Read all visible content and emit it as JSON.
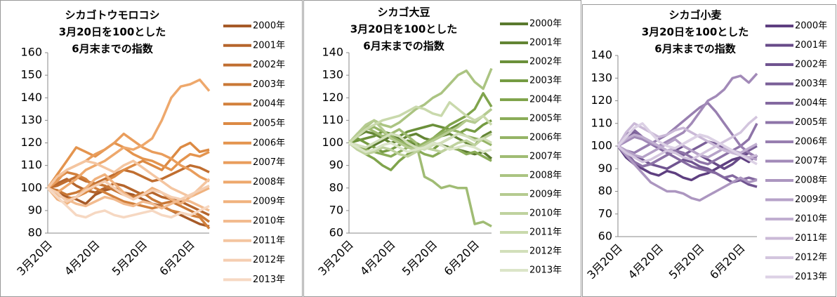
{
  "chart_data": [
    {
      "type": "line",
      "title": [
        "シカゴトウモロコシ",
        "3月20日を100とした",
        "6月末までの指数"
      ],
      "categories": [
        "3月20日",
        null,
        null,
        null,
        null,
        "4月20日",
        null,
        null,
        null,
        null,
        "5月20日",
        null,
        null,
        null,
        null,
        "6月20日",
        null,
        null
      ],
      "ylim": [
        80,
        160
      ],
      "yticks": [
        80,
        90,
        100,
        110,
        120,
        130,
        140,
        150,
        160
      ],
      "series": [
        {
          "name": "2000年",
          "color": "#a65a28",
          "values": [
            100,
            98,
            96,
            95,
            93,
            97,
            99,
            100,
            98,
            97,
            95,
            93,
            92,
            90,
            88,
            86,
            84,
            83
          ]
        },
        {
          "name": "2001年",
          "color": "#b5652c",
          "values": [
            100,
            102,
            104,
            101,
            99,
            98,
            100,
            102,
            101,
            99,
            97,
            98,
            96,
            95,
            94,
            92,
            90,
            88
          ]
        },
        {
          "name": "2002年",
          "color": "#c06e30",
          "values": [
            100,
            101,
            103,
            105,
            103,
            102,
            104,
            106,
            108,
            107,
            105,
            103,
            104,
            106,
            108,
            110,
            109,
            107
          ]
        },
        {
          "name": "2003年",
          "color": "#c97836",
          "values": [
            100,
            99,
            97,
            98,
            100,
            102,
            101,
            99,
            97,
            96,
            98,
            95,
            93,
            94,
            92,
            90,
            88,
            85
          ]
        },
        {
          "name": "2004年",
          "color": "#d2803c",
          "values": [
            100,
            104,
            107,
            106,
            104,
            100,
            98,
            96,
            94,
            93,
            92,
            91,
            92,
            90,
            89,
            88,
            87,
            82
          ]
        },
        {
          "name": "2005年",
          "color": "#dc8a44",
          "values": [
            100,
            97,
            95,
            96,
            98,
            101,
            103,
            105,
            108,
            110,
            112,
            110,
            108,
            113,
            118,
            120,
            116,
            117
          ]
        },
        {
          "name": "2006年",
          "color": "#e4944e",
          "values": [
            100,
            106,
            112,
            118,
            116,
            114,
            117,
            120,
            118,
            115,
            113,
            112,
            110,
            108,
            112,
            115,
            114,
            116
          ]
        },
        {
          "name": "2007年",
          "color": "#e99d5c",
          "values": [
            100,
            103,
            108,
            110,
            112,
            115,
            117,
            120,
            124,
            121,
            118,
            116,
            115,
            113,
            110,
            108,
            105,
            103
          ]
        },
        {
          "name": "2008年",
          "color": "#eea86c",
          "values": [
            100,
            98,
            101,
            104,
            108,
            110,
            112,
            115,
            118,
            117,
            119,
            122,
            130,
            140,
            145,
            146,
            148,
            143
          ]
        },
        {
          "name": "2009年",
          "color": "#f0b27e",
          "values": [
            100,
            95,
            93,
            96,
            100,
            104,
            106,
            102,
            98,
            95,
            97,
            100,
            98,
            95,
            93,
            96,
            98,
            100
          ]
        },
        {
          "name": "2010年",
          "color": "#f2bb8f",
          "values": [
            100,
            97,
            95,
            93,
            92,
            94,
            96,
            95,
            93,
            92,
            94,
            93,
            91,
            93,
            95,
            94,
            92,
            90
          ]
        },
        {
          "name": "2011年",
          "color": "#f4c5a0",
          "values": [
            100,
            105,
            108,
            110,
            112,
            111,
            109,
            107,
            110,
            112,
            109,
            106,
            103,
            100,
            98,
            96,
            100,
            104
          ]
        },
        {
          "name": "2012年",
          "color": "#f5ceb1",
          "values": [
            100,
            98,
            94,
            96,
            99,
            101,
            103,
            100,
            97,
            95,
            97,
            99,
            98,
            96,
            95,
            97,
            99,
            101
          ]
        },
        {
          "name": "2013年",
          "color": "#f6d8c2",
          "values": [
            100,
            96,
            92,
            88,
            87,
            89,
            90,
            88,
            87,
            88,
            89,
            90,
            88,
            87,
            89,
            88,
            90,
            92
          ]
        }
      ]
    },
    {
      "type": "line",
      "title": [
        "シカゴ大豆",
        "3月20日を100とした",
        "6月末までの指数"
      ],
      "categories": [
        "3月20日",
        null,
        null,
        null,
        null,
        "4月20日",
        null,
        null,
        null,
        null,
        "5月20日",
        null,
        null,
        null,
        null,
        "6月20日",
        null,
        null
      ],
      "ylim": [
        60,
        140
      ],
      "yticks": [
        60,
        70,
        80,
        90,
        100,
        110,
        120,
        130,
        140
      ],
      "series": [
        {
          "name": "2000年",
          "color": "#5a7a2e",
          "values": [
            100,
            98,
            97,
            99,
            101,
            103,
            102,
            100,
            99,
            98,
            100,
            99,
            98,
            97,
            96,
            95,
            96,
            93
          ]
        },
        {
          "name": "2001年",
          "color": "#638534",
          "values": [
            100,
            103,
            105,
            104,
            102,
            100,
            101,
            103,
            104,
            102,
            101,
            103,
            104,
            102,
            100,
            99,
            103,
            105
          ]
        },
        {
          "name": "2002年",
          "color": "#6b903a",
          "values": [
            100,
            101,
            102,
            103,
            105,
            104,
            103,
            105,
            106,
            107,
            108,
            107,
            106,
            108,
            110,
            109,
            112,
            115
          ]
        },
        {
          "name": "2003年",
          "color": "#759b42",
          "values": [
            100,
            102,
            100,
            98,
            96,
            97,
            99,
            101,
            100,
            98,
            97,
            100,
            102,
            104,
            106,
            105,
            108,
            110
          ]
        },
        {
          "name": "2004年",
          "color": "#80a44c",
          "values": [
            100,
            98,
            95,
            93,
            90,
            88,
            92,
            95,
            97,
            100,
            102,
            105,
            108,
            110,
            112,
            115,
            122,
            116
          ]
        },
        {
          "name": "2005年",
          "color": "#8aac58",
          "values": [
            100,
            99,
            97,
            96,
            95,
            94,
            96,
            98,
            97,
            95,
            94,
            96,
            98,
            97,
            95,
            96,
            94,
            92
          ]
        },
        {
          "name": "2006年",
          "color": "#95b466",
          "values": [
            100,
            103,
            106,
            107,
            105,
            103,
            101,
            99,
            98,
            100,
            102,
            104,
            106,
            105,
            103,
            102,
            101,
            99
          ]
        },
        {
          "name": "2007年",
          "color": "#a0bc74",
          "values": [
            100,
            104,
            107,
            105,
            103,
            104,
            106,
            103,
            100,
            85,
            83,
            80,
            81,
            80,
            80,
            64,
            65,
            63
          ]
        },
        {
          "name": "2008年",
          "color": "#abc482",
          "values": [
            100,
            103,
            107,
            110,
            108,
            107,
            109,
            112,
            115,
            117,
            120,
            122,
            126,
            130,
            132,
            127,
            124,
            133
          ]
        },
        {
          "name": "2009年",
          "color": "#b5cb90",
          "values": [
            100,
            104,
            108,
            110,
            106,
            102,
            100,
            98,
            97,
            99,
            101,
            103,
            105,
            107,
            110,
            109,
            112,
            115
          ]
        },
        {
          "name": "2010年",
          "color": "#bfd29e",
          "values": [
            100,
            97,
            95,
            96,
            98,
            97,
            95,
            94,
            96,
            98,
            97,
            96,
            98,
            100,
            101,
            99,
            102,
            104
          ]
        },
        {
          "name": "2011年",
          "color": "#c9d9ac",
          "values": [
            100,
            103,
            106,
            108,
            110,
            111,
            112,
            114,
            116,
            115,
            113,
            112,
            118,
            115,
            112,
            110,
            112,
            108
          ]
        },
        {
          "name": "2012年",
          "color": "#d2dfba",
          "values": [
            100,
            99,
            98,
            100,
            102,
            104,
            103,
            100,
            98,
            97,
            99,
            100,
            102,
            104,
            103,
            101,
            102,
            100
          ]
        },
        {
          "name": "2013年",
          "color": "#dbe5c8",
          "values": [
            100,
            98,
            96,
            97,
            99,
            100,
            98,
            96,
            97,
            98,
            100,
            99,
            97,
            98,
            99,
            98,
            96,
            97
          ]
        }
      ]
    },
    {
      "type": "line",
      "title": [
        "シカゴ小麦",
        "3月20日を100とした",
        "6月末までの指数"
      ],
      "categories": [
        "3月20日",
        null,
        null,
        null,
        null,
        "4月20日",
        null,
        null,
        null,
        null,
        "5月20日",
        null,
        null,
        null,
        null,
        "6月20日",
        null,
        null
      ],
      "ylim": [
        60,
        140
      ],
      "yticks": [
        60,
        70,
        80,
        90,
        100,
        110,
        120,
        130,
        140
      ],
      "series": [
        {
          "name": "2000年",
          "color": "#5e3f80",
          "values": [
            100,
            95,
            92,
            90,
            88,
            87,
            89,
            88,
            86,
            85,
            87,
            88,
            90,
            92,
            94,
            95,
            93,
            96
          ]
        },
        {
          "name": "2001年",
          "color": "#674a88",
          "values": [
            100,
            97,
            93,
            91,
            92,
            94,
            96,
            98,
            100,
            98,
            96,
            94,
            92,
            90,
            92,
            95,
            97,
            95
          ]
        },
        {
          "name": "2002年",
          "color": "#705490",
          "values": [
            100,
            98,
            96,
            94,
            92,
            91,
            90,
            92,
            94,
            93,
            91,
            90,
            88,
            86,
            84,
            85,
            83,
            82
          ]
        },
        {
          "name": "2003年",
          "color": "#7a5f98",
          "values": [
            100,
            103,
            106,
            104,
            102,
            100,
            98,
            97,
            96,
            98,
            100,
            102,
            101,
            99,
            97,
            96,
            98,
            100
          ]
        },
        {
          "name": "2004年",
          "color": "#8469a0",
          "values": [
            100,
            105,
            107,
            104,
            101,
            99,
            97,
            95,
            93,
            91,
            90,
            89,
            88,
            86,
            87,
            85,
            86,
            85
          ]
        },
        {
          "name": "2005年",
          "color": "#8e74a8",
          "values": [
            100,
            96,
            93,
            91,
            92,
            94,
            96,
            98,
            97,
            95,
            93,
            92,
            94,
            96,
            98,
            100,
            103,
            110
          ]
        },
        {
          "name": "2006年",
          "color": "#987fb0",
          "values": [
            100,
            98,
            97,
            99,
            101,
            103,
            105,
            108,
            111,
            114,
            117,
            119,
            115,
            110,
            105,
            100,
            97,
            95
          ]
        },
        {
          "name": "2007年",
          "color": "#a28ab8",
          "values": [
            100,
            102,
            104,
            103,
            101,
            100,
            102,
            104,
            106,
            110,
            115,
            120,
            122,
            125,
            130,
            131,
            128,
            132
          ]
        },
        {
          "name": "2008年",
          "color": "#ac96c0",
          "values": [
            100,
            96,
            92,
            88,
            84,
            82,
            80,
            80,
            79,
            77,
            76,
            78,
            80,
            82,
            84,
            86,
            84,
            85
          ]
        },
        {
          "name": "2009年",
          "color": "#b6a2c8",
          "values": [
            100,
            98,
            96,
            95,
            97,
            99,
            101,
            103,
            100,
            98,
            96,
            95,
            97,
            99,
            98,
            96,
            95,
            94
          ]
        },
        {
          "name": "2010年",
          "color": "#c0aed0",
          "values": [
            100,
            103,
            105,
            104,
            102,
            100,
            98,
            99,
            101,
            103,
            105,
            104,
            102,
            100,
            98,
            97,
            99,
            101
          ]
        },
        {
          "name": "2011年",
          "color": "#cab9d7",
          "values": [
            100,
            106,
            110,
            108,
            106,
            104,
            105,
            107,
            108,
            106,
            104,
            102,
            100,
            98,
            97,
            96,
            95,
            96
          ]
        },
        {
          "name": "2012年",
          "color": "#d3c5de",
          "values": [
            100,
            97,
            95,
            93,
            94,
            96,
            98,
            97,
            95,
            94,
            96,
            98,
            100,
            102,
            104,
            106,
            110,
            113
          ]
        },
        {
          "name": "2013年",
          "color": "#dcd1e5",
          "values": [
            100,
            104,
            108,
            110,
            106,
            102,
            100,
            99,
            101,
            103,
            105,
            104,
            102,
            100,
            98,
            96,
            94,
            92
          ]
        }
      ]
    }
  ]
}
